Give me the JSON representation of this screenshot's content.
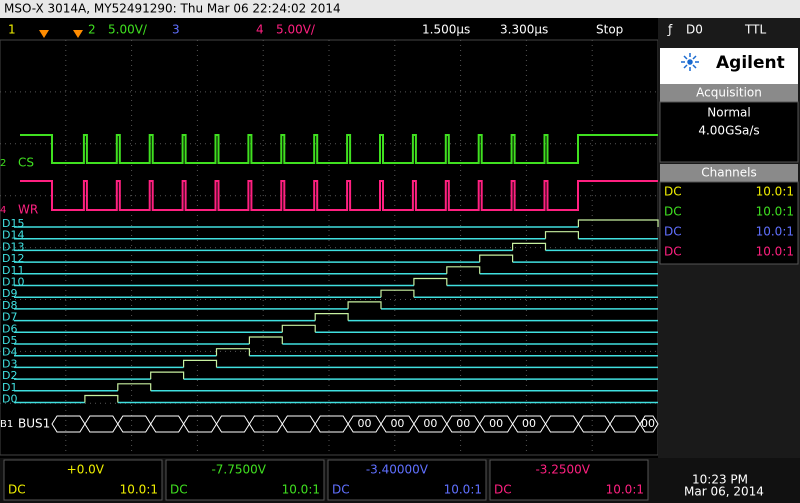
{
  "header": {
    "title": "MSO-X 3014A, MY52491290: Thu Mar 06 22:24:02 2014"
  },
  "status_bar": {
    "ch1": "1",
    "ch2": "2",
    "ch2_scale": "5.00V/",
    "ch3": "3",
    "ch4": "4",
    "ch4_scale": "5.00V/",
    "timebase": "1.500µs",
    "delay": "3.300µs",
    "run_state": "Stop",
    "trigger_source": "D0",
    "trigger_level": "TTL"
  },
  "side_panel": {
    "brand": "Agilent",
    "acquisition": {
      "title": "Acquisition",
      "mode": "Normal",
      "rate": "4.00GSa/s"
    },
    "channels": {
      "title": "Channels",
      "rows": [
        {
          "coupling": "DC",
          "probe": "10.0:1"
        },
        {
          "coupling": "DC",
          "probe": "10.0:1"
        },
        {
          "coupling": "DC",
          "probe": "10.0:1"
        },
        {
          "coupling": "DC",
          "probe": "10.0:1"
        }
      ]
    }
  },
  "waveform": {
    "analog": [
      {
        "number": "2",
        "label": "CS"
      },
      {
        "number": "4",
        "label": "WR"
      }
    ],
    "digital": [
      "D15",
      "D14",
      "D13",
      "D12",
      "D11",
      "D10",
      "D9",
      "D8",
      "D7",
      "D6",
      "D5",
      "D4",
      "D3",
      "D2",
      "D1",
      "D0"
    ],
    "bus": {
      "number": "B1",
      "name": "BUS1",
      "values": [
        "00",
        "00",
        "00",
        "00",
        "00",
        "00",
        "00"
      ]
    }
  },
  "footer": {
    "channels": [
      {
        "offset": "+0.0V",
        "coupling": "DC",
        "probe": "10.0:1"
      },
      {
        "offset": "-7.7500V",
        "coupling": "DC",
        "probe": "10.0:1"
      },
      {
        "offset": "-3.40000V",
        "coupling": "DC",
        "probe": "10.0:1"
      },
      {
        "offset": "-3.2500V",
        "coupling": "DC",
        "probe": "10.0:1"
      }
    ],
    "time": "10:23 PM",
    "date": "Mar 06, 2014"
  }
}
